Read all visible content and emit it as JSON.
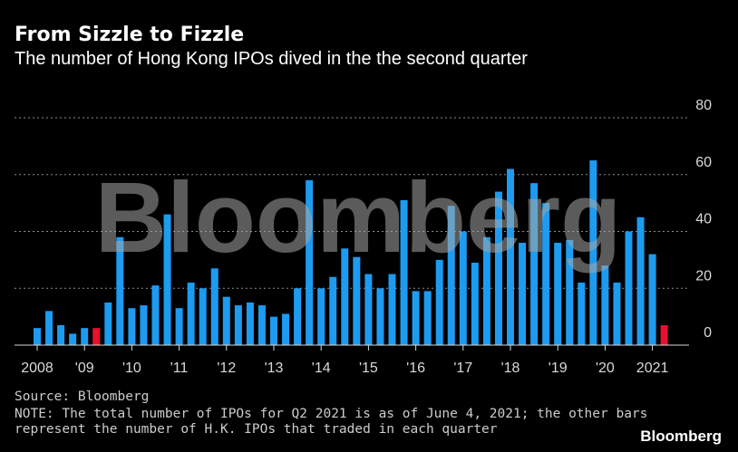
{
  "header": {
    "title": "From Sizzle to Fizzle",
    "subtitle": "The number of Hong Kong IPOs dived in the the second quarter"
  },
  "watermark": "Bloomberg",
  "footer": {
    "source": "Source: Bloomberg",
    "note_line1": "NOTE: The total number of IPOs for Q2 2021 is as of June 4, 2021; the other bars",
    "note_line2": "represent the number of H.K. IPOs that traded in each quarter",
    "brand": "Bloomberg"
  },
  "colors": {
    "bar": "#1d9bf0",
    "highlight": "#e8112d",
    "grid": "#8c8c8c",
    "background": "#000000"
  },
  "chart_data": {
    "type": "bar",
    "title": "From Sizzle to Fizzle",
    "ylim": [
      0,
      80
    ],
    "y_ticks": [
      0,
      20,
      40,
      60,
      80
    ],
    "y_axis_position": "right",
    "grid": true,
    "x_tick_labels": [
      {
        "label": "2008",
        "index": 0
      },
      {
        "label": "'09",
        "index": 4
      },
      {
        "label": "'10",
        "index": 8
      },
      {
        "label": "'11",
        "index": 12
      },
      {
        "label": "'12",
        "index": 16
      },
      {
        "label": "'13",
        "index": 20
      },
      {
        "label": "'14",
        "index": 24
      },
      {
        "label": "'15",
        "index": 28
      },
      {
        "label": "'16",
        "index": 32
      },
      {
        "label": "'17",
        "index": 36
      },
      {
        "label": "'18",
        "index": 40
      },
      {
        "label": "'19",
        "index": 44
      },
      {
        "label": "'20",
        "index": 48
      },
      {
        "label": "2021",
        "index": 52
      }
    ],
    "categories": [
      "2008 Q1",
      "2008 Q2",
      "2008 Q3",
      "2008 Q4",
      "2009 Q1",
      "2009 Q2",
      "2009 Q3",
      "2009 Q4",
      "2010 Q1",
      "2010 Q2",
      "2010 Q3",
      "2010 Q4",
      "2011 Q1",
      "2011 Q2",
      "2011 Q3",
      "2011 Q4",
      "2012 Q1",
      "2012 Q2",
      "2012 Q3",
      "2012 Q4",
      "2013 Q1",
      "2013 Q2",
      "2013 Q3",
      "2013 Q4",
      "2014 Q1",
      "2014 Q2",
      "2014 Q3",
      "2014 Q4",
      "2015 Q1",
      "2015 Q2",
      "2015 Q3",
      "2015 Q4",
      "2016 Q1",
      "2016 Q2",
      "2016 Q3",
      "2016 Q4",
      "2017 Q1",
      "2017 Q2",
      "2017 Q3",
      "2017 Q4",
      "2018 Q1",
      "2018 Q2",
      "2018 Q3",
      "2018 Q4",
      "2019 Q1",
      "2019 Q2",
      "2019 Q3",
      "2019 Q4",
      "2020 Q1",
      "2020 Q2",
      "2020 Q3",
      "2020 Q4",
      "2021 Q1",
      "2021 Q2"
    ],
    "values": [
      6,
      12,
      7,
      4,
      6,
      6,
      15,
      38,
      13,
      14,
      21,
      46,
      13,
      22,
      20,
      27,
      17,
      14,
      15,
      14,
      10,
      11,
      20,
      58,
      20,
      24,
      34,
      31,
      25,
      20,
      25,
      51,
      19,
      19,
      30,
      49,
      40,
      29,
      38,
      54,
      62,
      36,
      57,
      50,
      36,
      37,
      22,
      65,
      28,
      22,
      40,
      45,
      32,
      7
    ],
    "highlighted": [
      {
        "category": "2009 Q2",
        "color": "#e8112d"
      },
      {
        "category": "2021 Q2",
        "color": "#e8112d"
      }
    ]
  }
}
